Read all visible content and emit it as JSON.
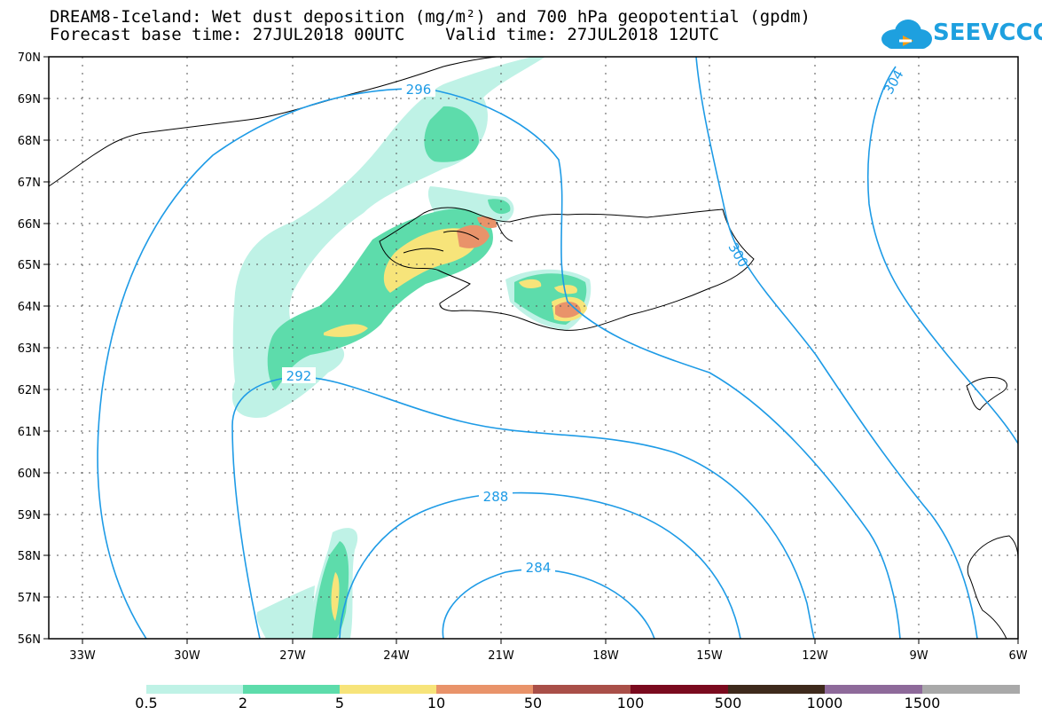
{
  "title": {
    "line1": "DREAM8-Iceland: Wet dust deposition (mg/m²) and 700 hPa geopotential (gpdm)",
    "line2": "Forecast base time: 27JUL2018 00UTC    Valid time: 27JUL2018 12UTC"
  },
  "logo": {
    "text": "SEEVCCC",
    "icon": "cloud-icon"
  },
  "map": {
    "lat_labels": [
      "70N",
      "69N",
      "68N",
      "67N",
      "66N",
      "65N",
      "64N",
      "63N",
      "62N",
      "61N",
      "60N",
      "59N",
      "58N",
      "57N",
      "56N"
    ],
    "lon_labels": [
      "33W",
      "30W",
      "27W",
      "24W",
      "21W",
      "18W",
      "15W",
      "12W",
      "9W",
      "6W"
    ],
    "grid": "dotted",
    "contour_color": "#1e9be6",
    "contour_labels": [
      "296",
      "292",
      "288",
      "284",
      "300",
      "304"
    ]
  },
  "colorbar": {
    "labels": [
      "0.5",
      "2",
      "5",
      "10",
      "50",
      "100",
      "500",
      "1000",
      "1500"
    ],
    "colors": [
      "#bff2e6",
      "#5ddcab",
      "#f7e47a",
      "#e9936a",
      "#a94f48",
      "#7a0a1e",
      "#3e2a1c",
      "#8e6a9a",
      "#a9a9a9"
    ]
  }
}
